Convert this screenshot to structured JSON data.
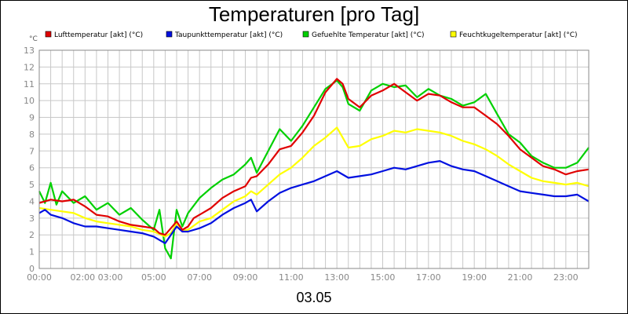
{
  "chart_data": {
    "type": "line",
    "title": "Temperaturen [pro Tag]",
    "date_label": "03.05",
    "y_unit": "°C",
    "ylim": [
      0,
      13
    ],
    "y_ticks": [
      0,
      1,
      2,
      3,
      4,
      5,
      6,
      7,
      8,
      9,
      10,
      11,
      12,
      13
    ],
    "xlim": [
      0,
      24
    ],
    "x_ticks": [
      {
        "h": 0,
        "label": "00:00"
      },
      {
        "h": 2.5,
        "label": "02:00 03:00"
      },
      {
        "h": 5,
        "label": "05:00"
      },
      {
        "h": 7,
        "label": "07:00"
      },
      {
        "h": 9,
        "label": "09:00"
      },
      {
        "h": 11,
        "label": "11:00"
      },
      {
        "h": 13,
        "label": "13:00"
      },
      {
        "h": 15,
        "label": "15:00"
      },
      {
        "h": 17,
        "label": "17:00"
      },
      {
        "h": 19,
        "label": "19:00"
      },
      {
        "h": 21,
        "label": "21:00"
      },
      {
        "h": 23,
        "label": "23:00"
      }
    ],
    "grid": true,
    "legend_position": "top",
    "series": [
      {
        "name": "Lufttemperatur [akt] (°C)",
        "color": "#e00000",
        "x": [
          0,
          0.5,
          1,
          1.5,
          2,
          2.5,
          3,
          3.5,
          4,
          4.5,
          5,
          5.25,
          5.5,
          5.75,
          6,
          6.25,
          6.5,
          6.75,
          7,
          7.5,
          8,
          8.5,
          9,
          9.25,
          9.5,
          10,
          10.5,
          11,
          11.5,
          12,
          12.5,
          13,
          13.25,
          13.5,
          14,
          14.5,
          15,
          15.5,
          16,
          16.5,
          17,
          17.5,
          18,
          18.5,
          19,
          19.5,
          20,
          20.5,
          21,
          21.5,
          22,
          22.5,
          23,
          23.5,
          24
        ],
        "y": [
          3.9,
          4.1,
          4.0,
          4.1,
          3.7,
          3.2,
          3.1,
          2.8,
          2.6,
          2.5,
          2.4,
          2.1,
          2.0,
          2.4,
          2.8,
          2.3,
          2.5,
          3.0,
          3.2,
          3.6,
          4.2,
          4.6,
          4.9,
          5.4,
          5.5,
          6.2,
          7.1,
          7.3,
          8.1,
          9.1,
          10.5,
          11.3,
          11.0,
          10.1,
          9.6,
          10.3,
          10.6,
          11.0,
          10.5,
          10.0,
          10.4,
          10.3,
          9.9,
          9.6,
          9.6,
          9.1,
          8.6,
          7.9,
          7.1,
          6.6,
          6.1,
          5.9,
          5.6,
          5.8,
          5.9
        ]
      },
      {
        "name": "Taupunkttemperatur [akt] (°C)",
        "color": "#0010e0",
        "x": [
          0,
          0.25,
          0.5,
          1,
          1.5,
          2,
          2.5,
          3,
          3.5,
          4,
          4.5,
          5,
          5.5,
          5.75,
          6,
          6.25,
          6.5,
          7,
          7.5,
          8,
          8.5,
          9,
          9.25,
          9.5,
          10,
          10.5,
          11,
          11.5,
          12,
          12.5,
          13,
          13.5,
          14,
          14.5,
          15,
          15.5,
          16,
          16.5,
          17,
          17.5,
          18,
          18.5,
          19,
          19.5,
          20,
          20.5,
          21,
          21.5,
          22,
          22.5,
          23,
          23.5,
          24
        ],
        "y": [
          3.3,
          3.5,
          3.2,
          3.0,
          2.7,
          2.5,
          2.5,
          2.4,
          2.3,
          2.2,
          2.1,
          1.9,
          1.5,
          2.0,
          2.5,
          2.2,
          2.2,
          2.4,
          2.7,
          3.2,
          3.6,
          3.9,
          4.1,
          3.4,
          4.0,
          4.5,
          4.8,
          5.0,
          5.2,
          5.5,
          5.8,
          5.4,
          5.5,
          5.6,
          5.8,
          6.0,
          5.9,
          6.1,
          6.3,
          6.4,
          6.1,
          5.9,
          5.8,
          5.5,
          5.2,
          4.9,
          4.6,
          4.5,
          4.4,
          4.3,
          4.3,
          4.4,
          4.0
        ]
      },
      {
        "name": "Gefuehlte Temperatur [akt] (°C)",
        "color": "#00d000",
        "x": [
          0,
          0.25,
          0.5,
          0.75,
          1,
          1.5,
          2,
          2.5,
          3,
          3.5,
          4,
          4.5,
          5,
          5.25,
          5.5,
          5.75,
          6,
          6.25,
          6.5,
          7,
          7.5,
          8,
          8.5,
          9,
          9.25,
          9.5,
          10,
          10.5,
          11,
          11.5,
          12,
          12.5,
          13,
          13.25,
          13.5,
          14,
          14.5,
          15,
          15.5,
          16,
          16.5,
          17,
          17.5,
          18,
          18.5,
          19,
          19.5,
          20,
          20.5,
          21,
          21.5,
          22,
          22.5,
          23,
          23.5,
          24
        ],
        "y": [
          4.6,
          3.9,
          5.1,
          3.8,
          4.6,
          3.9,
          4.3,
          3.5,
          3.9,
          3.2,
          3.6,
          2.9,
          2.3,
          3.5,
          1.2,
          0.6,
          3.5,
          2.5,
          3.3,
          4.2,
          4.8,
          5.3,
          5.6,
          6.2,
          6.6,
          5.7,
          7.0,
          8.3,
          7.6,
          8.5,
          9.6,
          10.7,
          11.2,
          10.8,
          9.8,
          9.4,
          10.6,
          11.0,
          10.8,
          10.9,
          10.2,
          10.7,
          10.3,
          10.1,
          9.7,
          9.9,
          10.4,
          9.2,
          8.0,
          7.5,
          6.7,
          6.3,
          6.0,
          6.0,
          6.3,
          7.2
        ]
      },
      {
        "name": "Feuchtkugeltemperatur [akt] (°C)",
        "color": "#ffff00",
        "x": [
          0,
          0.5,
          1,
          1.5,
          2,
          2.5,
          3,
          3.5,
          4,
          4.5,
          5,
          5.5,
          5.75,
          6,
          6.25,
          6.5,
          7,
          7.5,
          8,
          8.5,
          9,
          9.25,
          9.5,
          10,
          10.5,
          11,
          11.5,
          12,
          12.5,
          13,
          13.5,
          14,
          14.5,
          15,
          15.5,
          16,
          16.5,
          17,
          17.5,
          18,
          18.5,
          19,
          19.5,
          20,
          20.5,
          21,
          21.5,
          22,
          22.5,
          23,
          23.5,
          24
        ],
        "y": [
          3.6,
          3.5,
          3.4,
          3.3,
          3.0,
          2.8,
          2.7,
          2.6,
          2.5,
          2.3,
          2.2,
          1.9,
          2.1,
          2.7,
          2.3,
          2.3,
          2.8,
          3.0,
          3.5,
          4.0,
          4.3,
          4.6,
          4.4,
          5.0,
          5.6,
          6.0,
          6.6,
          7.3,
          7.8,
          8.4,
          7.2,
          7.3,
          7.7,
          7.9,
          8.2,
          8.1,
          8.3,
          8.2,
          8.1,
          7.9,
          7.6,
          7.4,
          7.1,
          6.7,
          6.2,
          5.8,
          5.4,
          5.2,
          5.1,
          5.0,
          5.1,
          4.9
        ]
      }
    ]
  }
}
